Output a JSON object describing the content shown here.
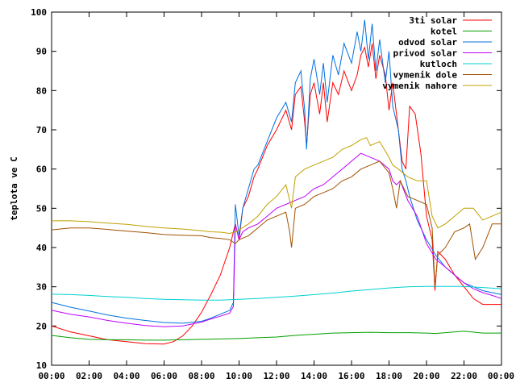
{
  "chart_data": {
    "type": "line",
    "title": "",
    "xlabel": "",
    "ylabel": "teplota ve C",
    "xlim": [
      0,
      24
    ],
    "ylim": [
      10,
      100
    ],
    "x_ticks": [
      "00:00",
      "02:00",
      "04:00",
      "06:00",
      "08:00",
      "10:00",
      "12:00",
      "14:00",
      "16:00",
      "18:00",
      "20:00",
      "22:00",
      "00:00"
    ],
    "y_ticks": [
      "10",
      "20",
      "30",
      "40",
      "50",
      "60",
      "70",
      "80",
      "90",
      "100"
    ],
    "grid": false,
    "legend_position": "top-right",
    "series": [
      {
        "name": "3ti solar",
        "color": "#ff0000",
        "points": [
          [
            0,
            20
          ],
          [
            1,
            18.5
          ],
          [
            2,
            17.5
          ],
          [
            3,
            16.5
          ],
          [
            4,
            16
          ],
          [
            5,
            15.5
          ],
          [
            6,
            15.4
          ],
          [
            6.5,
            16
          ],
          [
            7,
            17.5
          ],
          [
            7.5,
            20
          ],
          [
            8,
            23.5
          ],
          [
            8.5,
            28
          ],
          [
            9,
            33
          ],
          [
            9.5,
            40
          ],
          [
            9.7,
            44
          ],
          [
            9.8,
            46
          ],
          [
            10,
            42
          ],
          [
            10.2,
            50
          ],
          [
            10.5,
            53
          ],
          [
            10.8,
            58
          ],
          [
            11,
            60
          ],
          [
            11.5,
            66
          ],
          [
            12,
            70
          ],
          [
            12.5,
            75
          ],
          [
            12.8,
            70
          ],
          [
            13,
            79
          ],
          [
            13.3,
            81
          ],
          [
            13.5,
            72
          ],
          [
            13.6,
            66
          ],
          [
            13.8,
            79
          ],
          [
            14,
            82
          ],
          [
            14.3,
            74
          ],
          [
            14.5,
            82
          ],
          [
            14.7,
            72
          ],
          [
            15,
            82
          ],
          [
            15.3,
            79
          ],
          [
            15.6,
            85
          ],
          [
            16,
            80
          ],
          [
            16.3,
            84
          ],
          [
            16.5,
            89
          ],
          [
            16.7,
            91
          ],
          [
            16.9,
            86
          ],
          [
            17.1,
            92
          ],
          [
            17.3,
            83
          ],
          [
            17.5,
            89
          ],
          [
            17.8,
            84
          ],
          [
            18,
            75
          ],
          [
            18.2,
            82
          ],
          [
            18.5,
            70
          ],
          [
            18.7,
            62
          ],
          [
            18.9,
            60
          ],
          [
            19.1,
            76
          ],
          [
            19.4,
            74
          ],
          [
            19.7,
            64
          ],
          [
            20,
            48
          ],
          [
            20.3,
            42
          ],
          [
            20.45,
            29
          ],
          [
            20.6,
            39
          ],
          [
            21,
            37
          ],
          [
            21.5,
            33
          ],
          [
            22,
            30
          ],
          [
            22.5,
            27
          ],
          [
            23,
            25.5
          ],
          [
            23.5,
            25.5
          ],
          [
            24,
            25.5
          ]
        ]
      },
      {
        "name": "kotel",
        "color": "#00a000",
        "points": [
          [
            0,
            17.6
          ],
          [
            1,
            17
          ],
          [
            2,
            16.6
          ],
          [
            3,
            16.5
          ],
          [
            4,
            16.5
          ],
          [
            5,
            16.4
          ],
          [
            6,
            16.4
          ],
          [
            7,
            16.5
          ],
          [
            8,
            16.6
          ],
          [
            9,
            16.7
          ],
          [
            10,
            16.8
          ],
          [
            11,
            17
          ],
          [
            12,
            17.2
          ],
          [
            13,
            17.6
          ],
          [
            14,
            17.9
          ],
          [
            15,
            18.2
          ],
          [
            16,
            18.3
          ],
          [
            17,
            18.4
          ],
          [
            18,
            18.3
          ],
          [
            19,
            18.3
          ],
          [
            20,
            18.2
          ],
          [
            20.5,
            18.1
          ],
          [
            21,
            18.3
          ],
          [
            22,
            18.7
          ],
          [
            23,
            18.2
          ],
          [
            24,
            18.2
          ]
        ]
      },
      {
        "name": "odvod solar",
        "color": "#0070e0",
        "points": [
          [
            0,
            26
          ],
          [
            1,
            24.8
          ],
          [
            2,
            23.8
          ],
          [
            3,
            22.8
          ],
          [
            4,
            22
          ],
          [
            5,
            21.4
          ],
          [
            6,
            20.9
          ],
          [
            7,
            20.7
          ],
          [
            8,
            21.2
          ],
          [
            8.5,
            22
          ],
          [
            9,
            23
          ],
          [
            9.5,
            24
          ],
          [
            9.7,
            26
          ],
          [
            9.8,
            51
          ],
          [
            10,
            43
          ],
          [
            10.2,
            50
          ],
          [
            10.5,
            55
          ],
          [
            10.8,
            60
          ],
          [
            11,
            61
          ],
          [
            11.5,
            67
          ],
          [
            12,
            73
          ],
          [
            12.5,
            77
          ],
          [
            12.8,
            72
          ],
          [
            13,
            82
          ],
          [
            13.3,
            85
          ],
          [
            13.5,
            75
          ],
          [
            13.6,
            65
          ],
          [
            13.8,
            83
          ],
          [
            14,
            88
          ],
          [
            14.3,
            79
          ],
          [
            14.5,
            87
          ],
          [
            14.7,
            77
          ],
          [
            15,
            89
          ],
          [
            15.3,
            84
          ],
          [
            15.6,
            92
          ],
          [
            16,
            87
          ],
          [
            16.3,
            95
          ],
          [
            16.5,
            90
          ],
          [
            16.7,
            98
          ],
          [
            16.9,
            88
          ],
          [
            17.1,
            97
          ],
          [
            17.3,
            85
          ],
          [
            17.5,
            93
          ],
          [
            17.8,
            82
          ],
          [
            18,
            90
          ],
          [
            18.2,
            76
          ],
          [
            18.5,
            70
          ],
          [
            18.7,
            60
          ],
          [
            18.9,
            57
          ],
          [
            19.1,
            53
          ],
          [
            19.5,
            47
          ],
          [
            20,
            42
          ],
          [
            20.5,
            38
          ],
          [
            21,
            35
          ],
          [
            21.5,
            33
          ],
          [
            22,
            31
          ],
          [
            22.5,
            30
          ],
          [
            23,
            29
          ],
          [
            23.5,
            28.5
          ],
          [
            24,
            28
          ]
        ]
      },
      {
        "name": "privod solar",
        "color": "#c000ff",
        "points": [
          [
            0,
            24
          ],
          [
            1,
            23
          ],
          [
            2,
            22.3
          ],
          [
            3,
            21.4
          ],
          [
            4,
            20.7
          ],
          [
            5,
            20.1
          ],
          [
            6,
            19.8
          ],
          [
            7,
            20
          ],
          [
            8,
            21
          ],
          [
            8.5,
            21.8
          ],
          [
            9,
            22.5
          ],
          [
            9.5,
            23.3
          ],
          [
            9.7,
            25
          ],
          [
            9.8,
            46
          ],
          [
            10,
            42
          ],
          [
            10.2,
            44
          ],
          [
            10.5,
            45
          ],
          [
            11,
            46
          ],
          [
            11.5,
            48
          ],
          [
            12,
            50
          ],
          [
            12.5,
            51
          ],
          [
            13,
            52
          ],
          [
            13.5,
            53
          ],
          [
            14,
            55
          ],
          [
            14.5,
            56
          ],
          [
            15,
            58
          ],
          [
            15.5,
            60
          ],
          [
            16,
            62
          ],
          [
            16.5,
            64
          ],
          [
            17,
            63
          ],
          [
            17.5,
            62
          ],
          [
            18,
            60
          ],
          [
            18.2,
            57
          ],
          [
            18.4,
            56
          ],
          [
            18.6,
            57
          ],
          [
            19,
            52
          ],
          [
            19.5,
            48
          ],
          [
            20,
            41
          ],
          [
            20.5,
            37
          ],
          [
            21,
            35
          ],
          [
            21.5,
            33
          ],
          [
            22,
            31
          ],
          [
            22.5,
            29.5
          ],
          [
            23,
            28.5
          ],
          [
            23.5,
            27.8
          ],
          [
            24,
            27
          ]
        ]
      },
      {
        "name": "kutloch",
        "color": "#00d0d0",
        "points": [
          [
            0,
            28.1
          ],
          [
            1,
            28
          ],
          [
            2,
            27.8
          ],
          [
            3,
            27.5
          ],
          [
            4,
            27.3
          ],
          [
            5,
            27
          ],
          [
            6,
            26.8
          ],
          [
            7,
            26.7
          ],
          [
            8,
            26.6
          ],
          [
            9,
            26.6
          ],
          [
            10,
            26.8
          ],
          [
            11,
            27
          ],
          [
            12,
            27.3
          ],
          [
            13,
            27.6
          ],
          [
            14,
            28
          ],
          [
            15,
            28.4
          ],
          [
            16,
            28.9
          ],
          [
            17,
            29.3
          ],
          [
            18,
            29.7
          ],
          [
            19,
            30
          ],
          [
            20,
            30.1
          ],
          [
            21,
            30.1
          ],
          [
            22,
            30.1
          ],
          [
            23,
            29.8
          ],
          [
            24,
            29.5
          ]
        ]
      },
      {
        "name": "vymenik dole",
        "color": "#a05000",
        "points": [
          [
            0,
            44.5
          ],
          [
            1,
            45
          ],
          [
            2,
            45
          ],
          [
            3,
            44.6
          ],
          [
            4,
            44.2
          ],
          [
            5,
            43.8
          ],
          [
            6,
            43.3
          ],
          [
            7,
            43.1
          ],
          [
            8,
            43
          ],
          [
            8.5,
            42.5
          ],
          [
            9,
            42.3
          ],
          [
            9.5,
            42
          ],
          [
            9.8,
            41
          ],
          [
            10,
            42
          ],
          [
            10.5,
            43
          ],
          [
            11,
            45
          ],
          [
            11.5,
            47
          ],
          [
            12,
            48
          ],
          [
            12.5,
            49
          ],
          [
            12.7,
            44
          ],
          [
            12.8,
            40
          ],
          [
            13,
            50
          ],
          [
            13.5,
            51
          ],
          [
            14,
            53
          ],
          [
            14.5,
            54
          ],
          [
            15,
            55
          ],
          [
            15.5,
            57
          ],
          [
            16,
            58
          ],
          [
            16.5,
            60
          ],
          [
            17,
            61
          ],
          [
            17.5,
            62
          ],
          [
            18,
            59
          ],
          [
            18.2,
            55
          ],
          [
            18.4,
            50
          ],
          [
            18.6,
            57
          ],
          [
            19,
            53
          ],
          [
            19.5,
            52
          ],
          [
            20,
            51
          ],
          [
            20.3,
            45
          ],
          [
            20.45,
            30
          ],
          [
            20.6,
            38
          ],
          [
            21,
            40
          ],
          [
            21.5,
            44
          ],
          [
            22,
            45
          ],
          [
            22.3,
            46
          ],
          [
            22.6,
            37
          ],
          [
            23,
            40
          ],
          [
            23.5,
            46
          ],
          [
            24,
            46
          ]
        ]
      },
      {
        "name": "vymenik nahore",
        "color": "#c0a000",
        "points": [
          [
            0,
            46.8
          ],
          [
            1,
            46.8
          ],
          [
            2,
            46.6
          ],
          [
            3,
            46.2
          ],
          [
            4,
            45.9
          ],
          [
            5,
            45.4
          ],
          [
            6,
            45
          ],
          [
            7,
            44.7
          ],
          [
            8,
            44.3
          ],
          [
            8.5,
            44
          ],
          [
            9,
            43.9
          ],
          [
            9.5,
            43.6
          ],
          [
            9.8,
            44
          ],
          [
            10,
            44.5
          ],
          [
            10.5,
            46
          ],
          [
            11,
            48
          ],
          [
            11.5,
            51
          ],
          [
            12,
            53
          ],
          [
            12.5,
            56
          ],
          [
            12.8,
            50
          ],
          [
            13,
            58
          ],
          [
            13.5,
            60
          ],
          [
            14,
            61
          ],
          [
            14.5,
            62
          ],
          [
            15,
            63
          ],
          [
            15.5,
            65
          ],
          [
            16,
            66
          ],
          [
            16.5,
            67.5
          ],
          [
            16.8,
            68
          ],
          [
            17,
            66
          ],
          [
            17.5,
            67
          ],
          [
            18,
            63
          ],
          [
            18.2,
            61
          ],
          [
            18.5,
            60
          ],
          [
            19,
            58
          ],
          [
            19.5,
            57
          ],
          [
            20,
            57
          ],
          [
            20.3,
            48
          ],
          [
            20.6,
            45
          ],
          [
            21,
            46
          ],
          [
            21.5,
            48
          ],
          [
            22,
            50
          ],
          [
            22.5,
            50
          ],
          [
            23,
            47
          ],
          [
            23.5,
            48
          ],
          [
            24,
            49
          ]
        ]
      }
    ]
  }
}
